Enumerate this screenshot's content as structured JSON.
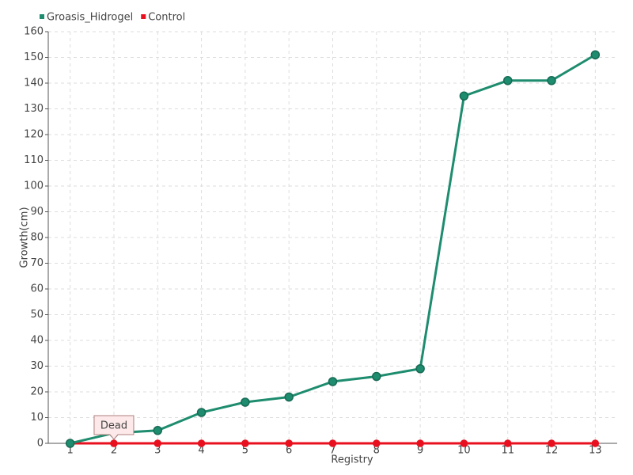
{
  "chart_data": {
    "type": "line",
    "categories": [
      "1",
      "2",
      "3",
      "4",
      "5",
      "6",
      "7",
      "8",
      "9",
      "10",
      "11",
      "12",
      "13"
    ],
    "series": [
      {
        "name": "Groasis_Hidrogel",
        "color": "#1e8c6e",
        "values": [
          0,
          4,
          5,
          12,
          16,
          18,
          24,
          26,
          29,
          135,
          141,
          141,
          151
        ]
      },
      {
        "name": "Control",
        "color": "#e8101e",
        "values": [
          0,
          0,
          0,
          0,
          0,
          0,
          0,
          0,
          0,
          0,
          0,
          0,
          0
        ]
      }
    ],
    "annotation": "Dead",
    "x_label": "Registry",
    "y_label": "Growth(cm)",
    "ylim": [
      0,
      160
    ],
    "yticks": [
      0,
      10,
      20,
      30,
      40,
      50,
      60,
      70,
      80,
      90,
      100,
      110,
      120,
      130,
      140,
      150,
      160
    ],
    "grid": true,
    "legend": "top-left"
  }
}
